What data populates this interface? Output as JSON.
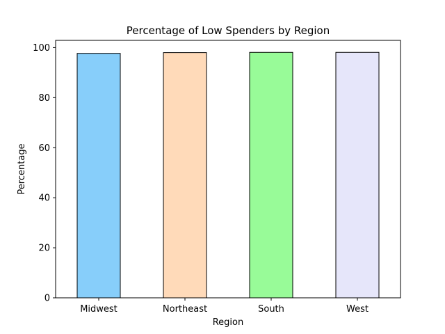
{
  "chart_data": {
    "type": "bar",
    "title": "Percentage of Low Spenders by Region",
    "xlabel": "Region",
    "ylabel": "Percentage",
    "categories": [
      "Midwest",
      "Northeast",
      "South",
      "West"
    ],
    "values": [
      97.7,
      98.0,
      98.1,
      98.1
    ],
    "colors": [
      "#87CEFA",
      "#FFDAB9",
      "#98FB98",
      "#E6E6FA"
    ],
    "edge_color": "#000000",
    "ylim": [
      0,
      102.9
    ],
    "yticks": [
      0,
      20,
      40,
      60,
      80,
      100
    ],
    "grid": false
  }
}
